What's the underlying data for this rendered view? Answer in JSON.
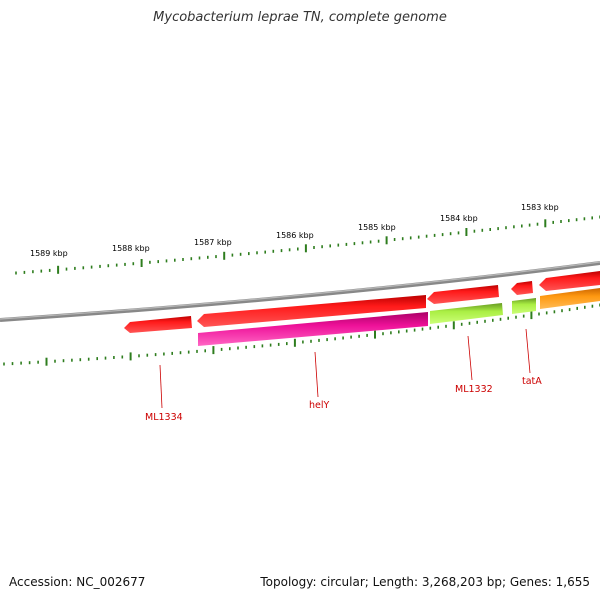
{
  "title": "Mycobacterium leprae TN, complete genome",
  "footer": {
    "accession": "Accession: NC_002677",
    "topology": "Topology: circular; Length: 3,268,203 bp; Genes: 1,655"
  },
  "ruler_labels": [
    "1589 kbp",
    "1588 kbp",
    "1587 kbp",
    "1586 kbp",
    "1585 kbp",
    "1584 kbp",
    "1583 kbp"
  ],
  "gene_labels": [
    "ML1334",
    "helY",
    "ML1332",
    "tatA"
  ],
  "colors": {
    "backbone": "#8a8a8a",
    "tick": "#2e7d1e",
    "gene_red": "#ee0000",
    "gene_magenta": "#ee1199",
    "gene_lime": "#aaee44",
    "gene_orange": "#ff9911",
    "label": "#cc0000"
  }
}
